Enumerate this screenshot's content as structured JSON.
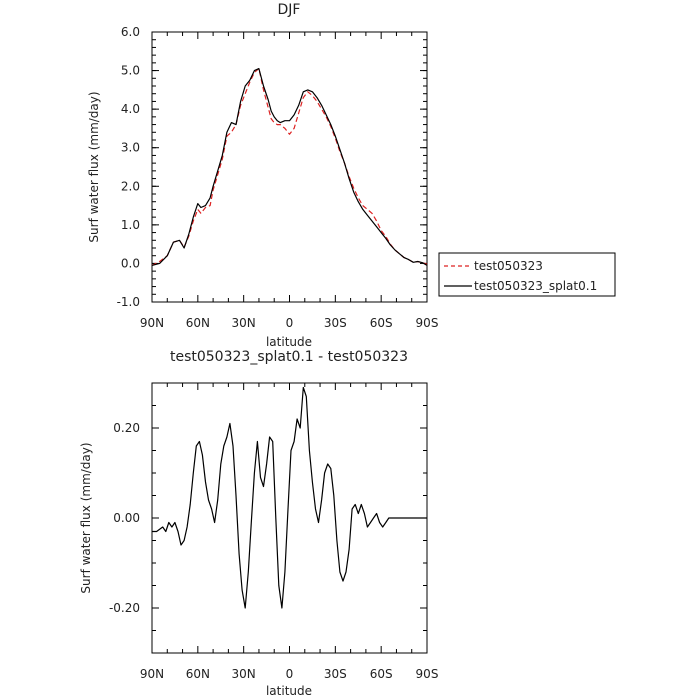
{
  "chart_data": [
    {
      "type": "line",
      "title": "DJF",
      "xlabel": "latitude",
      "ylabel": "Surf water flux (mm/day)",
      "x_ticks": [
        "90N",
        "60N",
        "30N",
        "0",
        "30S",
        "60S",
        "90S"
      ],
      "x_tick_values": [
        90,
        60,
        30,
        0,
        -30,
        -60,
        -90
      ],
      "ylim": [
        -1.0,
        6.0
      ],
      "y_ticks": [
        "-1.0",
        "0.0",
        "1.0",
        "2.0",
        "3.0",
        "4.0",
        "5.0",
        "6.0"
      ],
      "y_tick_values": [
        -1,
        0,
        1,
        2,
        3,
        4,
        5,
        6
      ],
      "series": [
        {
          "name": "test050323",
          "color": "#dd2222",
          "dash": true,
          "x": [
            90,
            85,
            80,
            76,
            72,
            69,
            66,
            63,
            60,
            58,
            55,
            52,
            50,
            47,
            44,
            41,
            38,
            35,
            32,
            29,
            26,
            23,
            20,
            17,
            14,
            12,
            10,
            8,
            6,
            3,
            0,
            -3,
            -6,
            -9,
            -12,
            -15,
            -18,
            -21,
            -24,
            -27,
            -30,
            -33,
            -36,
            -39,
            -42,
            -45,
            -48,
            -51,
            -54,
            -57,
            -60,
            -63,
            -66,
            -69,
            -72,
            -75,
            -78,
            -81,
            -84,
            -87,
            -90
          ],
          "y": [
            -0.05,
            0.05,
            0.2,
            0.55,
            0.6,
            0.42,
            0.7,
            1.1,
            1.4,
            1.3,
            1.45,
            1.5,
            1.9,
            2.3,
            2.7,
            3.3,
            3.4,
            3.6,
            4.1,
            4.4,
            4.7,
            4.95,
            5.05,
            4.5,
            4.05,
            3.75,
            3.65,
            3.6,
            3.6,
            3.5,
            3.35,
            3.5,
            3.9,
            4.3,
            4.45,
            4.35,
            4.2,
            4.0,
            3.8,
            3.55,
            3.25,
            2.9,
            2.6,
            2.25,
            1.95,
            1.7,
            1.5,
            1.4,
            1.3,
            1.1,
            0.85,
            0.7,
            0.5,
            0.35,
            0.25,
            0.15,
            0.1,
            0.03,
            0.05,
            0.02,
            -0.02
          ]
        },
        {
          "name": "test050323_splat0.1",
          "color": "#000000",
          "dash": false,
          "x": [
            90,
            85,
            80,
            76,
            72,
            69,
            66,
            63,
            60,
            58,
            55,
            52,
            50,
            47,
            44,
            41,
            38,
            35,
            32,
            29,
            26,
            23,
            20,
            17,
            14,
            12,
            10,
            8,
            6,
            3,
            0,
            -3,
            -6,
            -9,
            -12,
            -15,
            -18,
            -21,
            -24,
            -27,
            -30,
            -33,
            -36,
            -39,
            -42,
            -45,
            -48,
            -51,
            -54,
            -57,
            -60,
            -63,
            -66,
            -69,
            -72,
            -75,
            -78,
            -81,
            -84,
            -87,
            -90
          ],
          "y": [
            -0.05,
            0.0,
            0.2,
            0.55,
            0.6,
            0.4,
            0.75,
            1.2,
            1.55,
            1.45,
            1.5,
            1.7,
            2.0,
            2.4,
            2.8,
            3.4,
            3.65,
            3.6,
            4.2,
            4.6,
            4.75,
            5.0,
            5.05,
            4.6,
            4.25,
            3.95,
            3.8,
            3.7,
            3.65,
            3.7,
            3.7,
            3.85,
            4.1,
            4.45,
            4.5,
            4.45,
            4.3,
            4.1,
            3.85,
            3.6,
            3.3,
            2.95,
            2.6,
            2.2,
            1.85,
            1.6,
            1.4,
            1.25,
            1.1,
            0.95,
            0.8,
            0.65,
            0.48,
            0.35,
            0.25,
            0.15,
            0.1,
            0.03,
            0.05,
            0.02,
            -0.05
          ]
        }
      ],
      "legend": "right"
    },
    {
      "type": "line",
      "title": "test050323_splat0.1 - test050323",
      "xlabel": "latitude",
      "ylabel": "Surf water flux (mm/day)",
      "x_ticks": [
        "90N",
        "60N",
        "30N",
        "0",
        "30S",
        "60S",
        "90S"
      ],
      "x_tick_values": [
        90,
        60,
        30,
        0,
        -30,
        -60,
        -90
      ],
      "ylim": [
        -0.3,
        0.3
      ],
      "y_ticks": [
        "-0.20",
        "0.00",
        "0.20"
      ],
      "y_tick_values": [
        -0.2,
        0.0,
        0.2
      ],
      "series": [
        {
          "color": "#000000",
          "dash": false,
          "x": [
            90,
            87,
            83,
            81,
            79,
            77,
            75,
            73,
            71,
            69,
            67,
            65,
            63,
            61,
            59,
            57,
            55,
            53,
            51,
            49,
            47,
            45,
            43,
            41,
            39,
            37,
            35,
            33,
            31,
            29,
            27,
            25,
            23,
            21,
            19,
            17,
            15,
            13,
            11,
            9,
            7,
            5,
            3,
            1,
            -1,
            -3,
            -5,
            -7,
            -9,
            -11,
            -13,
            -15,
            -17,
            -19,
            -21,
            -23,
            -25,
            -27,
            -29,
            -31,
            -33,
            -35,
            -37,
            -39,
            -41,
            -43,
            -45,
            -47,
            -49,
            -51,
            -53,
            -55,
            -57,
            -59,
            -61,
            -63,
            -65,
            -67,
            -69,
            -71,
            -73,
            -75,
            -77,
            -79,
            -81,
            -83,
            -85,
            -87,
            -90
          ],
          "y": [
            -0.03,
            -0.03,
            -0.02,
            -0.03,
            -0.01,
            -0.02,
            -0.01,
            -0.03,
            -0.06,
            -0.05,
            -0.02,
            0.03,
            0.1,
            0.16,
            0.17,
            0.14,
            0.08,
            0.04,
            0.02,
            -0.01,
            0.04,
            0.12,
            0.16,
            0.18,
            0.21,
            0.16,
            0.05,
            -0.08,
            -0.16,
            -0.2,
            -0.12,
            -0.01,
            0.1,
            0.17,
            0.09,
            0.07,
            0.12,
            0.18,
            0.17,
            0.0,
            -0.15,
            -0.2,
            -0.12,
            0.02,
            0.15,
            0.17,
            0.22,
            0.2,
            0.29,
            0.27,
            0.15,
            0.08,
            0.02,
            -0.01,
            0.04,
            0.1,
            0.12,
            0.11,
            0.05,
            -0.05,
            -0.12,
            -0.14,
            -0.12,
            -0.07,
            0.02,
            0.03,
            0.01,
            0.03,
            0.01,
            -0.02,
            -0.01,
            0.0,
            0.01,
            -0.01,
            -0.02,
            -0.01,
            0.0,
            0.0,
            0.0,
            0.0,
            0.0,
            0.0,
            0.0,
            0.0,
            0.0,
            0.0,
            0.0,
            0.0,
            0.0
          ]
        }
      ]
    }
  ]
}
